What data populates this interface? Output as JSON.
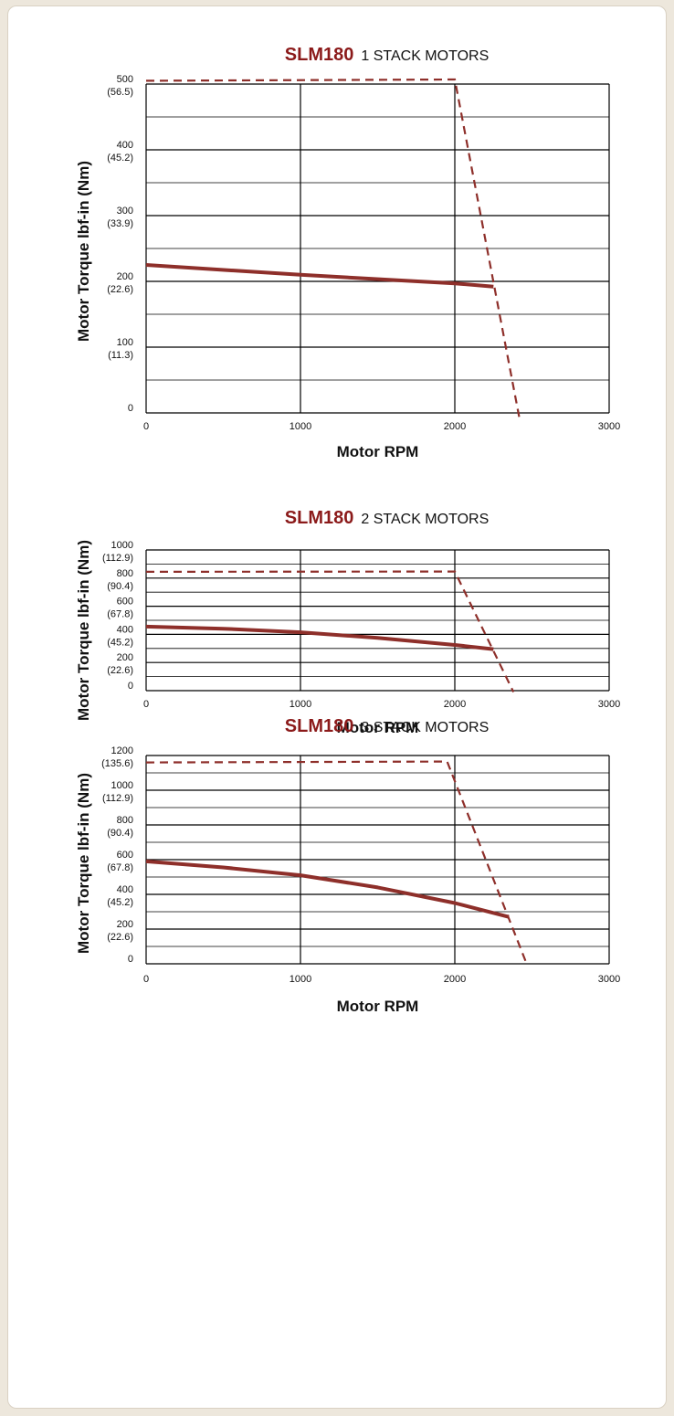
{
  "colors": {
    "curve": "#8e2f2a",
    "title_accent": "#8b1a1a",
    "grid": "#000000"
  },
  "chart_data": [
    {
      "type": "line",
      "title": "SLM180",
      "subtitle": "1 STACK MOTORS",
      "xlabel": "Motor RPM",
      "ylabel": "Motor Torque lbf-in (Nm)",
      "xlim": [
        0,
        3000
      ],
      "ylim": [
        0,
        500
      ],
      "x_ticks": [
        "0",
        "1000",
        "2000",
        "3000"
      ],
      "y_ticks": [
        {
          "value": 500,
          "label": "500",
          "sub": "(56.5)"
        },
        {
          "value": 400,
          "label": "400",
          "sub": "(45.2)"
        },
        {
          "value": 300,
          "label": "300",
          "sub": "(33.9)"
        },
        {
          "value": 200,
          "label": "200",
          "sub": "(22.6)"
        },
        {
          "value": 100,
          "label": "100",
          "sub": "(11.3)"
        },
        {
          "value": 0,
          "label": "0",
          "sub": ""
        }
      ],
      "grid": true,
      "series": [
        {
          "style": "solid",
          "x": [
            0,
            1000,
            2000,
            2250
          ],
          "y": [
            225,
            210,
            197,
            192
          ]
        },
        {
          "style": "dashed",
          "x": [
            0,
            2000,
            2420
          ],
          "y": [
            505,
            507,
            -10
          ]
        }
      ]
    },
    {
      "type": "line",
      "title": "SLM180",
      "subtitle": "2 STACK MOTORS",
      "xlabel": "Motor RPM",
      "ylabel": "Motor Torque lbf-in (Nm)",
      "xlim": [
        0,
        3000
      ],
      "ylim": [
        0,
        1000
      ],
      "x_ticks": [
        "0",
        "1000",
        "2000",
        "3000"
      ],
      "y_ticks": [
        {
          "value": 1000,
          "label": "1000",
          "sub": "(112.9)"
        },
        {
          "value": 800,
          "label": "800",
          "sub": "(90.4)"
        },
        {
          "value": 600,
          "label": "600",
          "sub": "(67.8)"
        },
        {
          "value": 400,
          "label": "400",
          "sub": "(45.2)"
        },
        {
          "value": 200,
          "label": "200",
          "sub": "(22.6)"
        },
        {
          "value": 0,
          "label": "0",
          "sub": ""
        }
      ],
      "grid": true,
      "series": [
        {
          "style": "solid",
          "x": [
            0,
            500,
            1000,
            1500,
            2000,
            2250
          ],
          "y": [
            455,
            440,
            415,
            375,
            325,
            295
          ]
        },
        {
          "style": "dashed",
          "x": [
            0,
            2000,
            2380
          ],
          "y": [
            845,
            847,
            -10
          ]
        }
      ]
    },
    {
      "type": "line",
      "title": "SLM180",
      "subtitle": "3 STACK MOTORS",
      "xlabel": "Motor RPM",
      "ylabel": "Motor Torque lbf-in (Nm)",
      "xlim": [
        0,
        3000
      ],
      "ylim": [
        0,
        1200
      ],
      "x_ticks": [
        "0",
        "1000",
        "2000",
        "3000"
      ],
      "y_ticks": [
        {
          "value": 1200,
          "label": "1200",
          "sub": "(135.6)"
        },
        {
          "value": 1000,
          "label": "1000",
          "sub": "(112.9)"
        },
        {
          "value": 800,
          "label": "800",
          "sub": "(90.4)"
        },
        {
          "value": 600,
          "label": "600",
          "sub": "(67.8)"
        },
        {
          "value": 400,
          "label": "400",
          "sub": "(45.2)"
        },
        {
          "value": 200,
          "label": "200",
          "sub": "(22.6)"
        },
        {
          "value": 0,
          "label": "0",
          "sub": ""
        }
      ],
      "grid": true,
      "series": [
        {
          "style": "solid",
          "x": [
            0,
            500,
            1000,
            1500,
            2000,
            2350
          ],
          "y": [
            590,
            555,
            510,
            440,
            350,
            270
          ]
        },
        {
          "style": "dashed",
          "x": [
            0,
            1950,
            2470
          ],
          "y": [
            1160,
            1165,
            -10
          ]
        }
      ]
    }
  ]
}
